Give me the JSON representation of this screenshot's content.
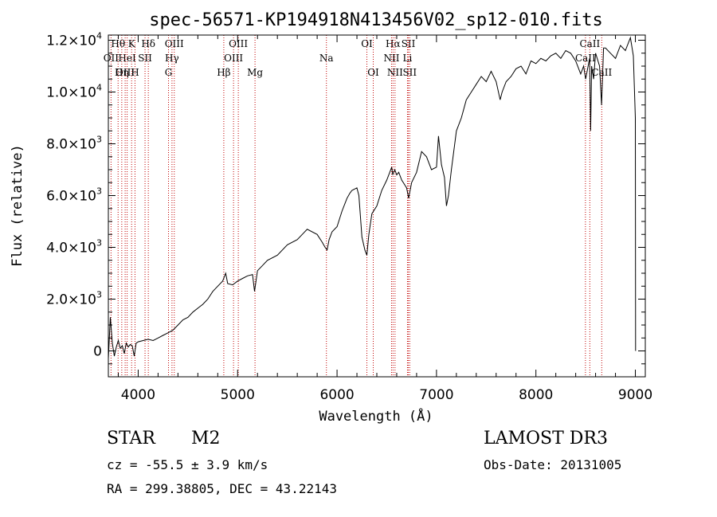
{
  "chart_data": {
    "type": "line",
    "title": "spec-56571-KP194918N413456V02_sp12-010.fits",
    "xlabel": "Wavelength (Å)",
    "ylabel": "Flux (relative)",
    "xlim": [
      3700,
      9100
    ],
    "ylim": [
      -1000,
      12200
    ],
    "xticks": [
      4000,
      5000,
      6000,
      7000,
      8000,
      9000
    ],
    "yticks": [
      {
        "value": 0,
        "mantissa": "0",
        "exp": ""
      },
      {
        "value": 2000,
        "mantissa": "2.0×10",
        "exp": "3"
      },
      {
        "value": 4000,
        "mantissa": "4.0×10",
        "exp": "3"
      },
      {
        "value": 6000,
        "mantissa": "6.0×10",
        "exp": "3"
      },
      {
        "value": 8000,
        "mantissa": "8.0×10",
        "exp": "3"
      },
      {
        "value": 10000,
        "mantissa": "1.0×10",
        "exp": "4"
      },
      {
        "value": 12000,
        "mantissa": "1.2×10",
        "exp": "4"
      }
    ],
    "series": [
      {
        "name": "spectrum",
        "color": "#000000",
        "x": [
          3700,
          3720,
          3740,
          3760,
          3780,
          3800,
          3820,
          3840,
          3860,
          3880,
          3900,
          3920,
          3940,
          3960,
          3980,
          4000,
          4050,
          4100,
          4150,
          4200,
          4250,
          4300,
          4350,
          4400,
          4450,
          4500,
          4550,
          4600,
          4650,
          4700,
          4750,
          4800,
          4850,
          4880,
          4900,
          4950,
          5000,
          5050,
          5100,
          5150,
          5170,
          5200,
          5250,
          5300,
          5400,
          5500,
          5600,
          5700,
          5800,
          5850,
          5880,
          5900,
          5920,
          5950,
          6000,
          6050,
          6100,
          6130,
          6150,
          6200,
          6220,
          6250,
          6280,
          6300,
          6320,
          6350,
          6400,
          6450,
          6500,
          6550,
          6560,
          6580,
          6600,
          6620,
          6650,
          6700,
          6720,
          6750,
          6800,
          6850,
          6900,
          6950,
          7000,
          7020,
          7050,
          7080,
          7100,
          7120,
          7150,
          7200,
          7250,
          7300,
          7350,
          7400,
          7450,
          7500,
          7550,
          7600,
          7640,
          7660,
          7700,
          7750,
          7800,
          7850,
          7900,
          7950,
          8000,
          8050,
          8100,
          8150,
          8200,
          8250,
          8300,
          8350,
          8400,
          8450,
          8480,
          8500,
          8540,
          8550,
          8560,
          8580,
          8600,
          8640,
          8660,
          8680,
          8700,
          8750,
          8800,
          8850,
          8900,
          8950,
          8980,
          9000,
          9002
        ],
        "values": [
          -300,
          1300,
          300,
          -200,
          150,
          400,
          100,
          200,
          -100,
          300,
          150,
          250,
          200,
          -200,
          300,
          350,
          400,
          450,
          400,
          500,
          600,
          700,
          800,
          1000,
          1200,
          1300,
          1500,
          1650,
          1800,
          2000,
          2300,
          2500,
          2700,
          3000,
          2600,
          2550,
          2700,
          2800,
          2900,
          2950,
          2300,
          3100,
          3300,
          3500,
          3700,
          4100,
          4300,
          4700,
          4500,
          4200,
          4000,
          3900,
          4300,
          4600,
          4800,
          5400,
          5900,
          6100,
          6200,
          6300,
          6000,
          4400,
          3900,
          3700,
          4500,
          5300,
          5600,
          6200,
          6600,
          7100,
          6800,
          7000,
          6800,
          6900,
          6600,
          6300,
          5900,
          6500,
          6900,
          7700,
          7500,
          7000,
          7100,
          8300,
          7200,
          6700,
          5600,
          6000,
          7000,
          8500,
          9000,
          9700,
          10000,
          10300,
          10600,
          10400,
          10800,
          10400,
          9700,
          10000,
          10400,
          10600,
          10900,
          11000,
          10700,
          11200,
          11100,
          11300,
          11200,
          11400,
          11500,
          11300,
          11600,
          11500,
          11200,
          10700,
          11000,
          10500,
          11300,
          8500,
          11000,
          10500,
          11500,
          11000,
          9500,
          11700,
          11700,
          11500,
          11300,
          11800,
          11600,
          12100,
          11400,
          9000,
          0
        ]
      }
    ],
    "lines": [
      {
        "name": "Hθ",
        "wl": 3798,
        "row": 0
      },
      {
        "name": "K",
        "wl": 3934,
        "row": 0
      },
      {
        "name": "Hδ",
        "wl": 4102,
        "row": 0
      },
      {
        "name": "OIII",
        "wl": 4363,
        "row": 0
      },
      {
        "name": "OIII",
        "wl": 5007,
        "row": 0
      },
      {
        "name": "OI",
        "wl": 6300,
        "row": 0
      },
      {
        "name": "Hα",
        "wl": 6563,
        "row": 0
      },
      {
        "name": "SII",
        "wl": 6717,
        "row": 0
      },
      {
        "name": "CaII",
        "wl": 8542,
        "row": 0
      },
      {
        "name": "OII",
        "wl": 3727,
        "row": 1
      },
      {
        "name": "HeI",
        "wl": 3889,
        "row": 1
      },
      {
        "name": "SII",
        "wl": 4069,
        "row": 1
      },
      {
        "name": "Hγ",
        "wl": 4340,
        "row": 1
      },
      {
        "name": "OIII",
        "wl": 4959,
        "row": 1
      },
      {
        "name": "Na",
        "wl": 5893,
        "row": 1
      },
      {
        "name": "NII",
        "wl": 6548,
        "row": 1
      },
      {
        "name": "Li",
        "wl": 6708,
        "row": 1
      },
      {
        "name": "CaII",
        "wl": 8498,
        "row": 1
      },
      {
        "name": "OIII",
        "wl": 3869,
        "row": 2
      },
      {
        "name": "Hη",
        "wl": 3835,
        "row": 2
      },
      {
        "name": "H",
        "wl": 3968,
        "row": 2
      },
      {
        "name": "G",
        "wl": 4305,
        "row": 2
      },
      {
        "name": "Hβ",
        "wl": 4861,
        "row": 2
      },
      {
        "name": "Mg",
        "wl": 5175,
        "row": 2
      },
      {
        "name": "OI",
        "wl": 6364,
        "row": 2
      },
      {
        "name": "NII",
        "wl": 6583,
        "row": 2
      },
      {
        "name": "SII",
        "wl": 6731,
        "row": 2
      },
      {
        "name": "CaII",
        "wl": 8662,
        "row": 2
      }
    ]
  },
  "info": {
    "class_label": "STAR",
    "subclass": "M2",
    "survey": "LAMOST DR3",
    "cz": "cz = -55.5 ± 3.9 km/s",
    "obs_date": "Obs-Date: 20131005",
    "coords": "RA = 299.38805, DEC =  43.22143"
  }
}
